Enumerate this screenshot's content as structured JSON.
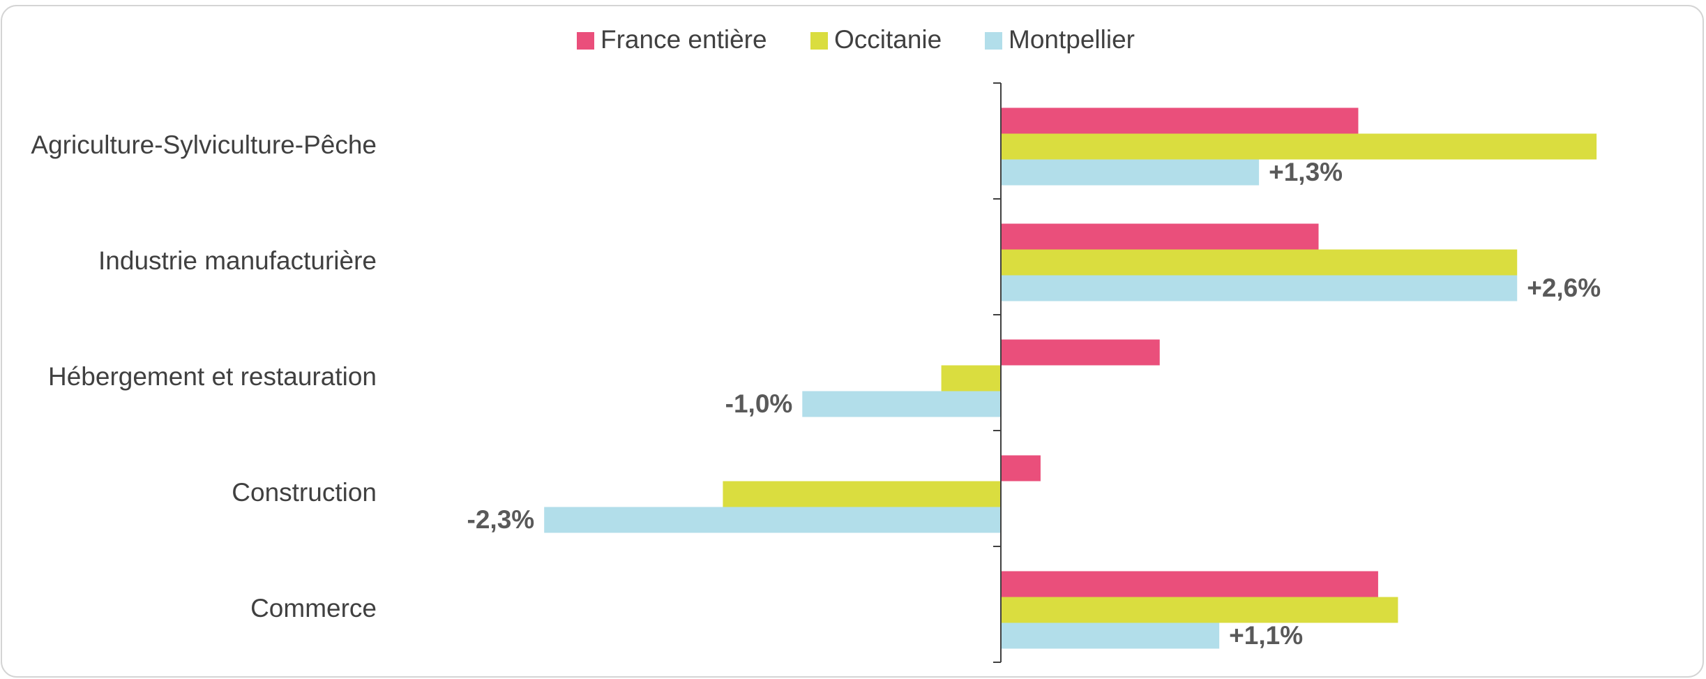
{
  "chart_data": {
    "type": "bar",
    "orientation": "horizontal",
    "categories": [
      "Agriculture-Sylviculture-Pêche",
      "Industrie manufacturière",
      "Hébergement et restauration",
      "Construction",
      "Commerce"
    ],
    "series": [
      {
        "name": "France entière",
        "color": "#ea4f7b",
        "values": [
          1.8,
          1.6,
          0.8,
          0.2,
          1.9
        ]
      },
      {
        "name": "Occitanie",
        "color": "#dadd3f",
        "values": [
          3.0,
          2.6,
          -0.3,
          -1.4,
          2.0
        ]
      },
      {
        "name": "Montpellier",
        "color": "#b2deea",
        "values": [
          1.3,
          2.6,
          -1.0,
          -2.3,
          1.1
        ],
        "value_labels": [
          "+1,3%",
          "+2,6%",
          "-1,0%",
          "-2,3%",
          "+1,1%"
        ]
      }
    ],
    "legend": "top"
  }
}
